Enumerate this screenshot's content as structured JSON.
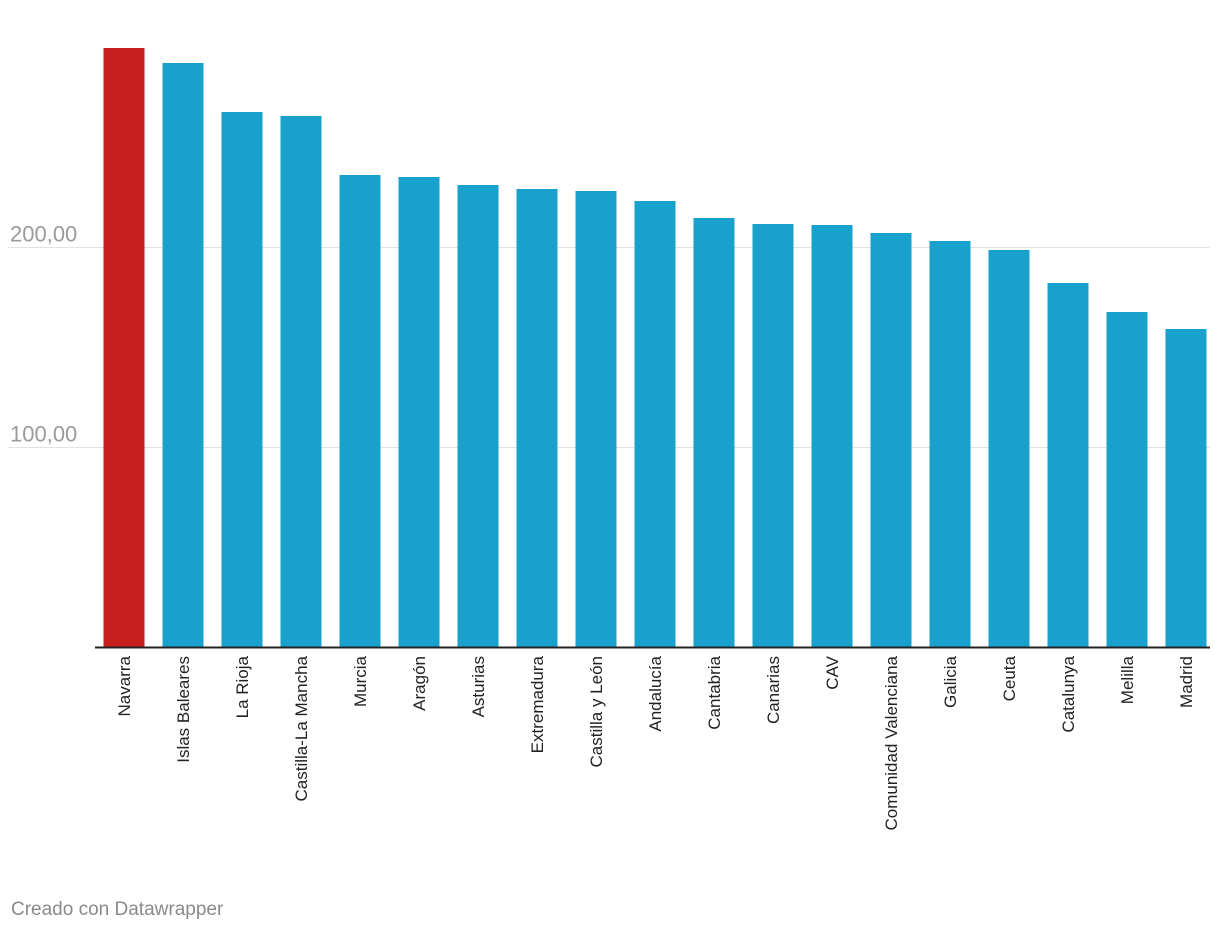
{
  "chart_data": {
    "type": "bar",
    "title": "",
    "xlabel": "",
    "ylabel": "",
    "ylim": [
      0,
      300
    ],
    "y_ticks": [
      100,
      200
    ],
    "y_tick_labels": [
      "100,00",
      "200,00"
    ],
    "grid": true,
    "categories": [
      "Navarra",
      "Islas Baleares",
      "La Rioja",
      "Castilla-La Mancha",
      "Murcia",
      "Aragón",
      "Asturias",
      "Extremadura",
      "Castilla y León",
      "Andalucía",
      "Cantabria",
      "Canarias",
      "CAV",
      "Comunidad Valenciana",
      "Galicia",
      "Ceuta",
      "Catalunya",
      "Melilla",
      "Madrid"
    ],
    "values": [
      299.5,
      292,
      267.5,
      265.5,
      236,
      235,
      231,
      229,
      228,
      223,
      214.5,
      211.5,
      211,
      207,
      203,
      198.5,
      182,
      167.5,
      159
    ],
    "colors": {
      "highlight": "#c71e1d",
      "default": "#18a1cd",
      "highlight_category": "Navarra"
    }
  },
  "footer": {
    "credit": "Creado con Datawrapper"
  }
}
